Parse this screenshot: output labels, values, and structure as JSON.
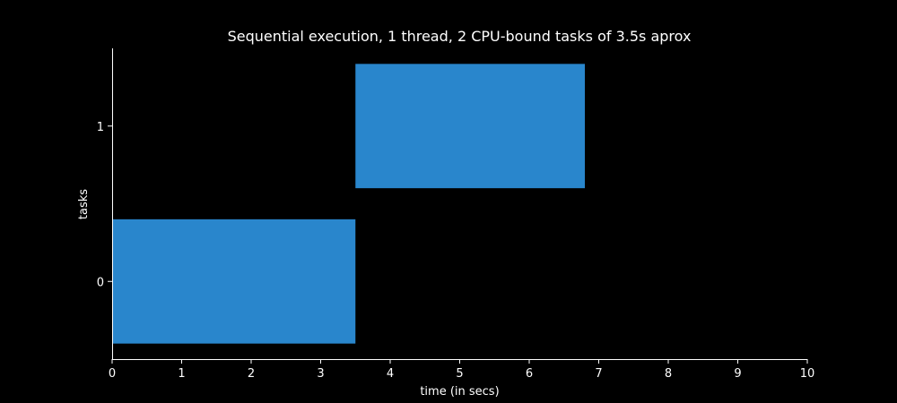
{
  "chart_data": {
    "type": "bar",
    "orientation": "horizontal-gantt",
    "title": "Sequential execution, 1 thread, 2 CPU-bound tasks of 3.5s aprox",
    "xlabel": "time (in secs)",
    "ylabel": "tasks",
    "xlim": [
      0,
      10
    ],
    "ylim": [
      -0.5,
      1.5
    ],
    "xticks": [
      "0",
      "1",
      "2",
      "3",
      "4",
      "5",
      "6",
      "7",
      "8",
      "9",
      "10"
    ],
    "yticks": [
      "0",
      "1"
    ],
    "bars": [
      {
        "task": 0,
        "start": 0.0,
        "end": 3.5
      },
      {
        "task": 1,
        "start": 3.5,
        "end": 6.8
      }
    ],
    "bar_color": "#2986cc",
    "grid": false,
    "background": "#000000",
    "axis_color": "#ffffff",
    "text_color": "#ffffff"
  }
}
